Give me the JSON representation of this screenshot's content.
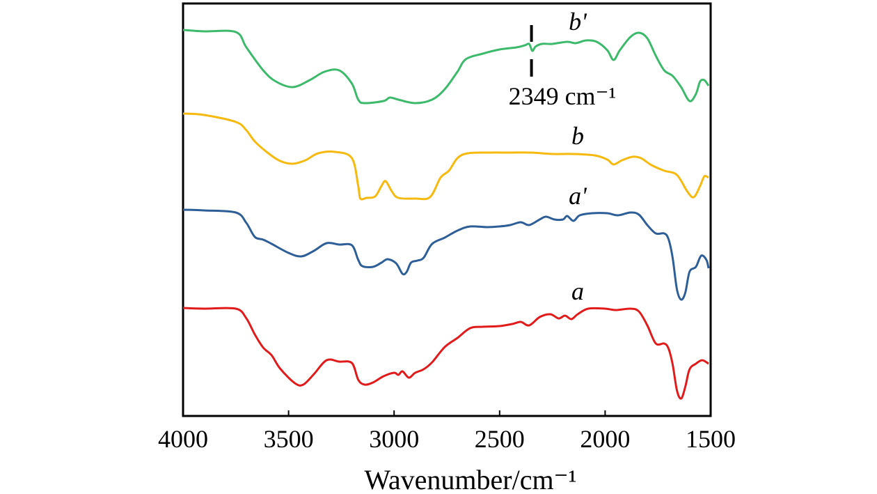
{
  "chart_data": {
    "type": "line",
    "xlabel": "Wavenumber/cm⁻¹",
    "ylabel": "",
    "xlim": [
      4000,
      1500
    ],
    "x_ticks": [
      "4000",
      "3500",
      "3000",
      "2500",
      "2000",
      "1500"
    ],
    "grid": false,
    "legend": "none",
    "series": [
      {
        "name": "b'",
        "color": "#3cb96a",
        "points": [
          [
            4000,
            38
          ],
          [
            3900,
            40
          ],
          [
            3750,
            41
          ],
          [
            3700,
            63
          ],
          [
            3620,
            96
          ],
          [
            3560,
            112
          ],
          [
            3480,
            120
          ],
          [
            3400,
            110
          ],
          [
            3330,
            98
          ],
          [
            3260,
            96
          ],
          [
            3200,
            115
          ],
          [
            3170,
            138
          ],
          [
            3140,
            143
          ],
          [
            3050,
            140
          ],
          [
            3020,
            135
          ],
          [
            2980,
            138
          ],
          [
            2900,
            143
          ],
          [
            2820,
            138
          ],
          [
            2760,
            123
          ],
          [
            2700,
            98
          ],
          [
            2660,
            80
          ],
          [
            2580,
            72
          ],
          [
            2500,
            66
          ],
          [
            2420,
            63
          ],
          [
            2380,
            60
          ],
          [
            2360,
            58
          ],
          [
            2345,
            68
          ],
          [
            2330,
            62
          ],
          [
            2300,
            58
          ],
          [
            2250,
            58
          ],
          [
            2180,
            55
          ],
          [
            2140,
            57
          ],
          [
            2090,
            53
          ],
          [
            2040,
            55
          ],
          [
            1990,
            67
          ],
          [
            1960,
            81
          ],
          [
            1930,
            67
          ],
          [
            1880,
            48
          ],
          [
            1840,
            42
          ],
          [
            1800,
            50
          ],
          [
            1760,
            75
          ],
          [
            1720,
            96
          ],
          [
            1680,
            104
          ],
          [
            1640,
            120
          ],
          [
            1600,
            140
          ],
          [
            1570,
            130
          ],
          [
            1550,
            112
          ],
          [
            1530,
            110
          ],
          [
            1510,
            118
          ]
        ]
      },
      {
        "name": "b",
        "color": "#f5b90f",
        "points": [
          [
            4000,
            158
          ],
          [
            3900,
            160
          ],
          [
            3750,
            170
          ],
          [
            3700,
            182
          ],
          [
            3660,
            198
          ],
          [
            3600,
            214
          ],
          [
            3540,
            226
          ],
          [
            3480,
            230
          ],
          [
            3420,
            225
          ],
          [
            3360,
            215
          ],
          [
            3280,
            213
          ],
          [
            3200,
            222
          ],
          [
            3170,
            262
          ],
          [
            3160,
            280
          ],
          [
            3130,
            279
          ],
          [
            3090,
            277
          ],
          [
            3060,
            262
          ],
          [
            3040,
            255
          ],
          [
            3010,
            270
          ],
          [
            2980,
            279
          ],
          [
            2900,
            280
          ],
          [
            2830,
            278
          ],
          [
            2780,
            250
          ],
          [
            2740,
            240
          ],
          [
            2700,
            222
          ],
          [
            2650,
            215
          ],
          [
            2550,
            214
          ],
          [
            2450,
            214
          ],
          [
            2350,
            214
          ],
          [
            2250,
            216
          ],
          [
            2150,
            216
          ],
          [
            2050,
            218
          ],
          [
            1990,
            224
          ],
          [
            1960,
            231
          ],
          [
            1920,
            225
          ],
          [
            1870,
            220
          ],
          [
            1830,
            222
          ],
          [
            1780,
            232
          ],
          [
            1720,
            240
          ],
          [
            1660,
            246
          ],
          [
            1610,
            270
          ],
          [
            1580,
            278
          ],
          [
            1550,
            262
          ],
          [
            1530,
            248
          ],
          [
            1510,
            250
          ]
        ]
      },
      {
        "name": "a'",
        "color": "#2e5e97",
        "points": [
          [
            4000,
            296
          ],
          [
            3900,
            297
          ],
          [
            3750,
            300
          ],
          [
            3700,
            315
          ],
          [
            3660,
            335
          ],
          [
            3620,
            339
          ],
          [
            3580,
            345
          ],
          [
            3500,
            358
          ],
          [
            3440,
            363
          ],
          [
            3380,
            355
          ],
          [
            3320,
            344
          ],
          [
            3260,
            346
          ],
          [
            3200,
            347
          ],
          [
            3170,
            368
          ],
          [
            3150,
            377
          ],
          [
            3100,
            378
          ],
          [
            3060,
            372
          ],
          [
            3030,
            367
          ],
          [
            2990,
            373
          ],
          [
            2960,
            388
          ],
          [
            2940,
            385
          ],
          [
            2920,
            372
          ],
          [
            2890,
            369
          ],
          [
            2860,
            365
          ],
          [
            2820,
            345
          ],
          [
            2760,
            336
          ],
          [
            2700,
            326
          ],
          [
            2640,
            320
          ],
          [
            2560,
            321
          ],
          [
            2500,
            320
          ],
          [
            2450,
            318
          ],
          [
            2400,
            314
          ],
          [
            2360,
            318
          ],
          [
            2310,
            310
          ],
          [
            2280,
            306
          ],
          [
            2240,
            310
          ],
          [
            2200,
            310
          ],
          [
            2180,
            305
          ],
          [
            2150,
            312
          ],
          [
            2120,
            304
          ],
          [
            2060,
            301
          ],
          [
            1990,
            301
          ],
          [
            1940,
            304
          ],
          [
            1880,
            300
          ],
          [
            1840,
            303
          ],
          [
            1800,
            318
          ],
          [
            1760,
            330
          ],
          [
            1720,
            330
          ],
          [
            1700,
            338
          ],
          [
            1680,
            365
          ],
          [
            1660,
            410
          ],
          [
            1640,
            425
          ],
          [
            1620,
            415
          ],
          [
            1600,
            385
          ],
          [
            1570,
            378
          ],
          [
            1545,
            362
          ],
          [
            1520,
            368
          ],
          [
            1510,
            380
          ]
        ]
      },
      {
        "name": "a",
        "color": "#e11b1b",
        "points": [
          [
            4000,
            437
          ],
          [
            3900,
            438
          ],
          [
            3750,
            438
          ],
          [
            3700,
            452
          ],
          [
            3660,
            475
          ],
          [
            3620,
            494
          ],
          [
            3580,
            505
          ],
          [
            3540,
            524
          ],
          [
            3470,
            545
          ],
          [
            3430,
            547
          ],
          [
            3380,
            532
          ],
          [
            3320,
            512
          ],
          [
            3260,
            514
          ],
          [
            3200,
            516
          ],
          [
            3170,
            540
          ],
          [
            3140,
            547
          ],
          [
            3100,
            544
          ],
          [
            3050,
            535
          ],
          [
            3000,
            530
          ],
          [
            2980,
            533
          ],
          [
            2960,
            528
          ],
          [
            2930,
            537
          ],
          [
            2900,
            530
          ],
          [
            2860,
            525
          ],
          [
            2820,
            515
          ],
          [
            2760,
            493
          ],
          [
            2700,
            480
          ],
          [
            2640,
            466
          ],
          [
            2580,
            464
          ],
          [
            2500,
            463
          ],
          [
            2440,
            460
          ],
          [
            2400,
            457
          ],
          [
            2360,
            462
          ],
          [
            2310,
            450
          ],
          [
            2260,
            446
          ],
          [
            2220,
            452
          ],
          [
            2190,
            448
          ],
          [
            2160,
            453
          ],
          [
            2130,
            446
          ],
          [
            2080,
            438
          ],
          [
            2000,
            438
          ],
          [
            1950,
            440
          ],
          [
            1880,
            438
          ],
          [
            1840,
            442
          ],
          [
            1800,
            462
          ],
          [
            1760,
            488
          ],
          [
            1720,
            488
          ],
          [
            1700,
            495
          ],
          [
            1680,
            518
          ],
          [
            1660,
            555
          ],
          [
            1640,
            567
          ],
          [
            1620,
            550
          ],
          [
            1600,
            525
          ],
          [
            1570,
            517
          ],
          [
            1540,
            512
          ],
          [
            1510,
            517
          ]
        ]
      }
    ],
    "series_labels": [
      {
        "series": 0,
        "text": "b'",
        "x": 2130,
        "y": 38
      },
      {
        "series": 1,
        "text": "b",
        "x": 2130,
        "y": 202
      },
      {
        "series": 2,
        "text": "a'",
        "x": 2130,
        "y": 288
      },
      {
        "series": 3,
        "text": "a",
        "x": 2130,
        "y": 425
      }
    ],
    "annotations": [
      {
        "text": "2349 cm⁻¹",
        "x": 2349
      }
    ]
  }
}
